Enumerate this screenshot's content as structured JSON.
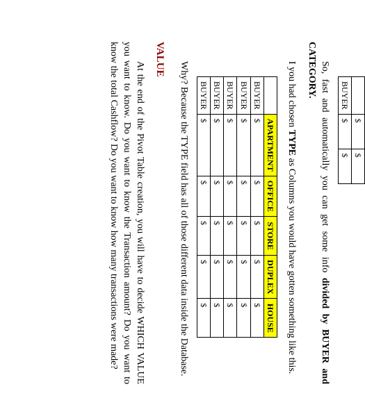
{
  "miniTable": {
    "rows": [
      [
        "",
        "$",
        "$"
      ],
      [
        "BUYER",
        "$",
        "$"
      ]
    ]
  },
  "para1": {
    "pre": "So, fast and automatically you can get some info ",
    "bold": "divided by BUYER and CATEGORY.",
    "post": ""
  },
  "para2": {
    "pre": "I you had chosen ",
    "bold": "TYPE",
    "post": " as Columns you would have gotten something like this."
  },
  "typeTable": {
    "columns": [
      "APARTMENT",
      "OFFICE",
      "STORE",
      "DUPLEX",
      "HOUSE"
    ],
    "rowLabel": "BUYER",
    "cell": "$",
    "rowCount": 5
  },
  "para3": "Why? Because the TYPE field has all of those different data inside the Database.",
  "heading": "VALUE",
  "para4": "At the end of the Pivot Table creation, you will have to decide WHICH VALUE you want to know. Do you want to know the Transaction amount? Do you want to know the total Cashflow? Do you want to know how many transactions were made?"
}
